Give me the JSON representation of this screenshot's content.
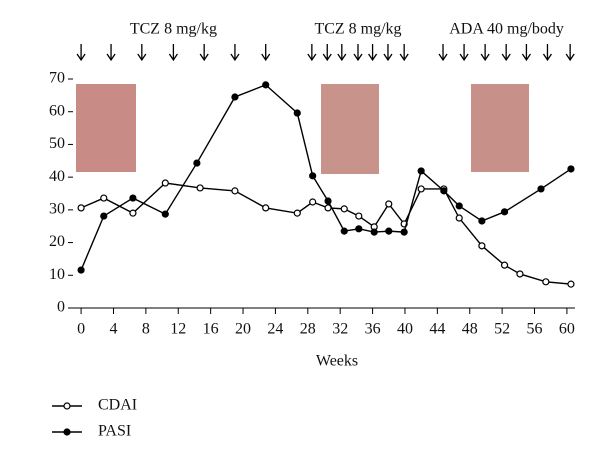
{
  "chart_data": {
    "type": "line",
    "x_label": "Weeks",
    "xlim": [
      -1,
      61
    ],
    "xticks": [
      0,
      4,
      8,
      12,
      16,
      20,
      24,
      28,
      32,
      36,
      40,
      44,
      48,
      52,
      56,
      60
    ],
    "ylim": [
      0,
      70
    ],
    "yticks": [
      0,
      10,
      20,
      30,
      40,
      50,
      60,
      70
    ],
    "legend": "bottom-left",
    "annotations": [
      {
        "text": "TCZ 8 mg/kg",
        "arrows": [
          0,
          3.7,
          7.5,
          11.4,
          15.2,
          19,
          22.8
        ]
      },
      {
        "text": "TCZ 8 mg/kg",
        "arrows": [
          28.5,
          30.4,
          32.2,
          34.2,
          36,
          37.9,
          39.9
        ]
      },
      {
        "text": "ADA 40 mg/body",
        "arrows": [
          44.7,
          47.3,
          49.9,
          52.5,
          55,
          57.6,
          60.4
        ]
      }
    ],
    "series": [
      {
        "name": "CDAI",
        "color": "#000000",
        "marker": "open",
        "x": [
          0,
          2.8,
          6.4,
          10.4,
          14.7,
          19,
          22.8,
          26.7,
          28.6,
          30.5,
          32.5,
          34.3,
          36.2,
          38,
          39.9,
          42,
          44.8,
          46.7,
          49.5,
          52.3,
          54.2,
          57.4,
          60.5
        ],
        "values": [
          30.6,
          33.6,
          29,
          38.2,
          36.7,
          35.8,
          30.6,
          29,
          32.4,
          30.6,
          30.3,
          28.1,
          24.8,
          31.8,
          25.7,
          36.4,
          36.4,
          27.5,
          19,
          13.1,
          10.4,
          8,
          7.3
        ]
      },
      {
        "name": "PASI",
        "color": "#000000",
        "marker": "filled",
        "x": [
          0,
          2.8,
          6.4,
          10.4,
          14.3,
          19,
          22.8,
          26.7,
          28.6,
          30.5,
          32.5,
          34.3,
          36.2,
          38,
          39.9,
          42,
          44.8,
          46.7,
          49.5,
          52.3,
          56.8,
          60.5
        ],
        "values": [
          11.6,
          28.1,
          33.6,
          28.7,
          44.3,
          64.5,
          68.2,
          59.6,
          40.4,
          32.7,
          23.5,
          24.2,
          23.2,
          23.5,
          23.2,
          41.9,
          35.8,
          31.2,
          26.6,
          29.4,
          36.4,
          42.5
        ]
      }
    ]
  }
}
